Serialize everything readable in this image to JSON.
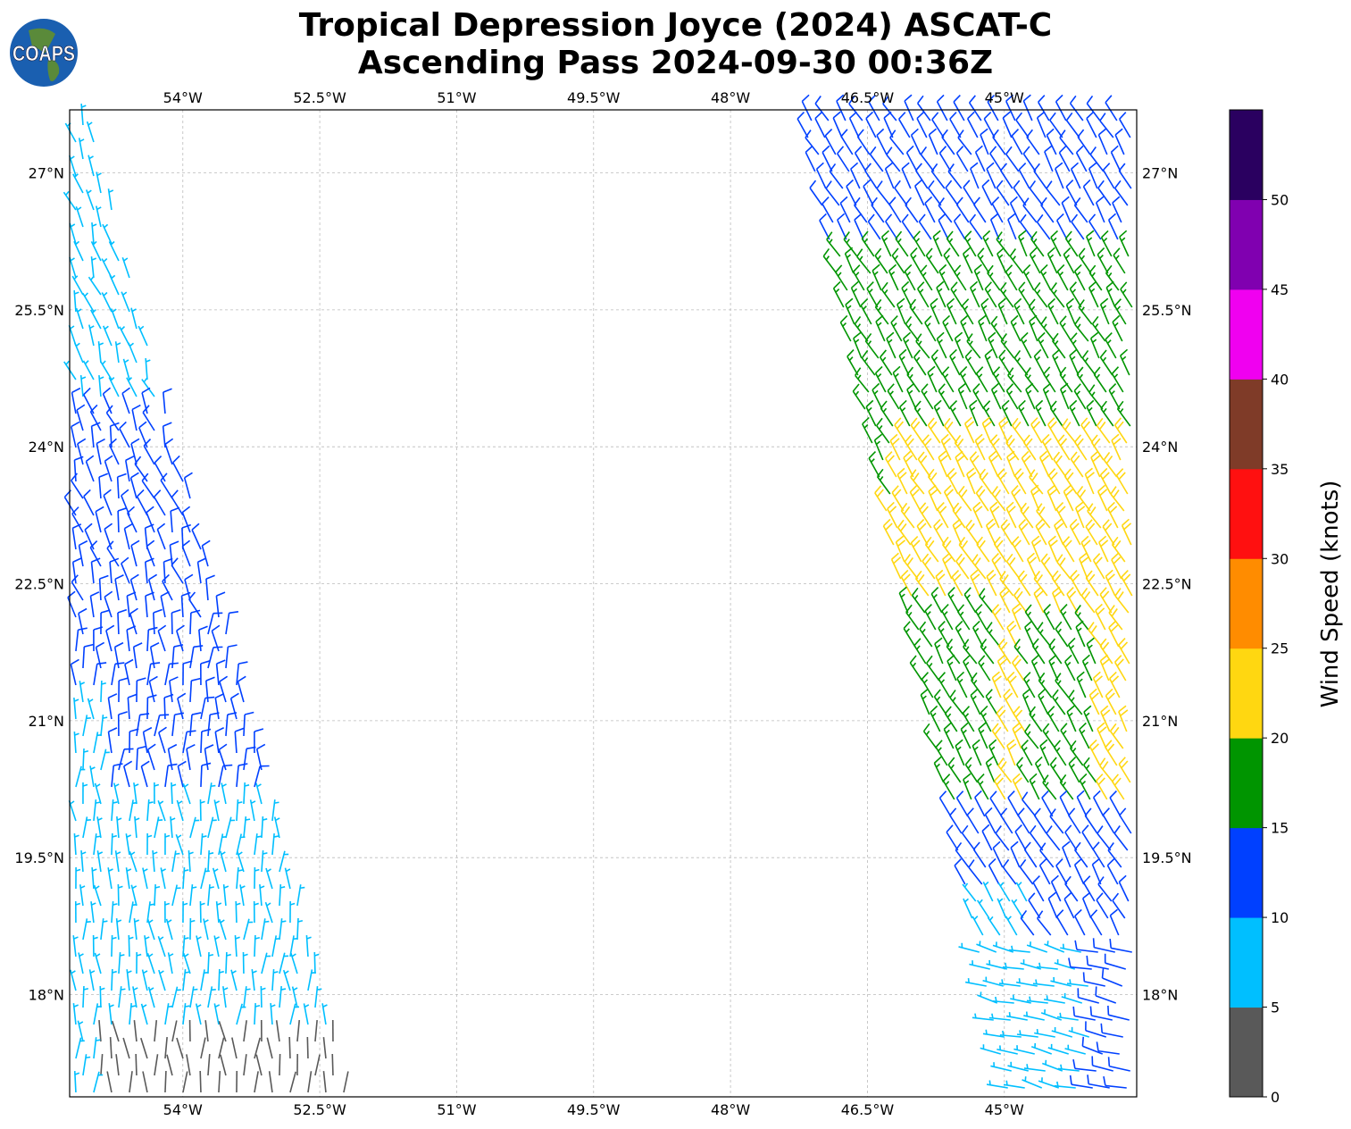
{
  "title": {
    "line1": "Tropical Depression Joyce (2024) ASCAT-C",
    "line2": "Ascending Pass 2024-09-30 00:36Z"
  },
  "logo": {
    "text": "COAPS"
  },
  "map": {
    "lon_range": [
      -55.24,
      -43.55
    ],
    "lat_range": [
      16.88,
      27.69
    ],
    "grid": true,
    "lon_ticks": [
      {
        "value": -54,
        "label": "54°W"
      },
      {
        "value": -52.5,
        "label": "52.5°W"
      },
      {
        "value": -51,
        "label": "51°W"
      },
      {
        "value": -49.5,
        "label": "49.5°W"
      },
      {
        "value": -48,
        "label": "48°W"
      },
      {
        "value": -46.5,
        "label": "46.5°W"
      },
      {
        "value": -45,
        "label": "45°W"
      }
    ],
    "lat_ticks": [
      {
        "value": 27,
        "label": "27°N"
      },
      {
        "value": 25.5,
        "label": "25.5°N"
      },
      {
        "value": 24,
        "label": "24°N"
      },
      {
        "value": 22.5,
        "label": "22.5°N"
      },
      {
        "value": 21,
        "label": "21°N"
      },
      {
        "value": 19.5,
        "label": "19.5°N"
      },
      {
        "value": 18,
        "label": "18°N"
      }
    ]
  },
  "colorbar": {
    "label": "Wind Speed (knots)",
    "range": [
      0,
      55
    ],
    "ticks": [
      "0",
      "5",
      "10",
      "15",
      "20",
      "25",
      "30",
      "35",
      "40",
      "45",
      "50"
    ],
    "colors": [
      "#595959",
      "#00bfff",
      "#0040ff",
      "#009500",
      "#ffd711",
      "#ff8c00",
      "#ff1010",
      "#7f3b28",
      "#f000f0",
      "#8000b0",
      "#2a0060"
    ]
  }
}
